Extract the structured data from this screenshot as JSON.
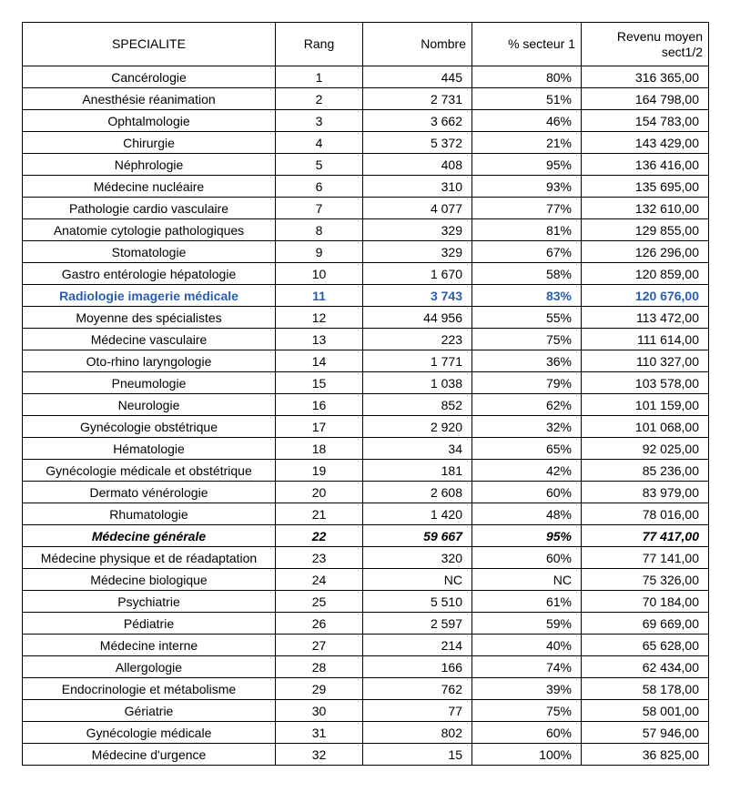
{
  "table": {
    "columns": [
      {
        "key": "specialite",
        "label": "SPECIALITE",
        "class": "col-specialite"
      },
      {
        "key": "rang",
        "label": "Rang",
        "class": "col-rang"
      },
      {
        "key": "nombre",
        "label": "Nombre",
        "class": "col-nombre"
      },
      {
        "key": "secteur",
        "label": "% secteur 1",
        "class": "col-secteur"
      },
      {
        "key": "revenu",
        "label": "Revenu moyen sect1/2",
        "class": "col-revenu"
      }
    ],
    "rows": [
      {
        "specialite": "Cancérologie",
        "rang": "1",
        "nombre": "445",
        "secteur": "80%",
        "revenu": "316 365,00"
      },
      {
        "specialite": "Anesthésie réanimation",
        "rang": "2",
        "nombre": "2 731",
        "secteur": "51%",
        "revenu": "164 798,00"
      },
      {
        "specialite": "Ophtalmologie",
        "rang": "3",
        "nombre": "3 662",
        "secteur": "46%",
        "revenu": "154 783,00"
      },
      {
        "specialite": "Chirurgie",
        "rang": "4",
        "nombre": "5 372",
        "secteur": "21%",
        "revenu": "143 429,00"
      },
      {
        "specialite": "Néphrologie",
        "rang": "5",
        "nombre": "408",
        "secteur": "95%",
        "revenu": "136 416,00"
      },
      {
        "specialite": "Médecine nucléaire",
        "rang": "6",
        "nombre": "310",
        "secteur": "93%",
        "revenu": "135 695,00"
      },
      {
        "specialite": "Pathologie cardio vasculaire",
        "rang": "7",
        "nombre": "4 077",
        "secteur": "77%",
        "revenu": "132 610,00"
      },
      {
        "specialite": "Anatomie cytologie pathologiques",
        "rang": "8",
        "nombre": "329",
        "secteur": "81%",
        "revenu": "129 855,00"
      },
      {
        "specialite": "Stomatologie",
        "rang": "9",
        "nombre": "329",
        "secteur": "67%",
        "revenu": "126 296,00"
      },
      {
        "specialite": "Gastro entérologie hépatologie",
        "rang": "10",
        "nombre": "1 670",
        "secteur": "58%",
        "revenu": "120 859,00"
      },
      {
        "specialite": "Radiologie imagerie médicale",
        "rang": "11",
        "nombre": "3 743",
        "secteur": "83%",
        "revenu": "120 676,00",
        "style": "blue"
      },
      {
        "specialite": "Moyenne des spécialistes",
        "rang": "12",
        "nombre": "44 956",
        "secteur": "55%",
        "revenu": "113 472,00"
      },
      {
        "specialite": "Médecine vasculaire",
        "rang": "13",
        "nombre": "223",
        "secteur": "75%",
        "revenu": "111 614,00"
      },
      {
        "specialite": "Oto-rhino laryngologie",
        "rang": "14",
        "nombre": "1 771",
        "secteur": "36%",
        "revenu": "110 327,00"
      },
      {
        "specialite": "Pneumologie",
        "rang": "15",
        "nombre": "1 038",
        "secteur": "79%",
        "revenu": "103 578,00"
      },
      {
        "specialite": "Neurologie",
        "rang": "16",
        "nombre": "852",
        "secteur": "62%",
        "revenu": "101 159,00"
      },
      {
        "specialite": "Gynécologie obstétrique",
        "rang": "17",
        "nombre": "2 920",
        "secteur": "32%",
        "revenu": "101 068,00"
      },
      {
        "specialite": "Hématologie",
        "rang": "18",
        "nombre": "34",
        "secteur": "65%",
        "revenu": "92 025,00"
      },
      {
        "specialite": "Gynécologie médicale et obstétrique",
        "rang": "19",
        "nombre": "181",
        "secteur": "42%",
        "revenu": "85 236,00"
      },
      {
        "specialite": "Dermato vénérologie",
        "rang": "20",
        "nombre": "2 608",
        "secteur": "60%",
        "revenu": "83 979,00"
      },
      {
        "specialite": "Rhumatologie",
        "rang": "21",
        "nombre": "1 420",
        "secteur": "48%",
        "revenu": "78 016,00"
      },
      {
        "specialite": "Médecine générale",
        "rang": "22",
        "nombre": "59 667",
        "secteur": "95%",
        "revenu": "77 417,00",
        "style": "bold"
      },
      {
        "specialite": "Médecine physique et de réadaptation",
        "rang": "23",
        "nombre": "320",
        "secteur": "60%",
        "revenu": "77 141,00"
      },
      {
        "specialite": "Médecine biologique",
        "rang": "24",
        "nombre": "NC",
        "secteur": "NC",
        "revenu": "75 326,00"
      },
      {
        "specialite": "Psychiatrie",
        "rang": "25",
        "nombre": "5 510",
        "secteur": "61%",
        "revenu": "70 184,00"
      },
      {
        "specialite": "Pédiatrie",
        "rang": "26",
        "nombre": "2 597",
        "secteur": "59%",
        "revenu": "69 669,00"
      },
      {
        "specialite": "Médecine interne",
        "rang": "27",
        "nombre": "214",
        "secteur": "40%",
        "revenu": "65 628,00"
      },
      {
        "specialite": "Allergologie",
        "rang": "28",
        "nombre": "166",
        "secteur": "74%",
        "revenu": "62 434,00"
      },
      {
        "specialite": "Endocrinologie et métabolisme",
        "rang": "29",
        "nombre": "762",
        "secteur": "39%",
        "revenu": "58 178,00"
      },
      {
        "specialite": "Gériatrie",
        "rang": "30",
        "nombre": "77",
        "secteur": "75%",
        "revenu": "58 001,00"
      },
      {
        "specialite": "Gynécologie médicale",
        "rang": "31",
        "nombre": "802",
        "secteur": "60%",
        "revenu": "57 946,00"
      },
      {
        "specialite": "Médecine d'urgence",
        "rang": "32",
        "nombre": "15",
        "secteur": "100%",
        "revenu": "36 825,00"
      }
    ],
    "styling": {
      "font_family": "Arial",
      "font_size_pt": 10,
      "border_color": "#000000",
      "highlight_blue_color": "#2a5db0",
      "background_color": "#ffffff"
    }
  }
}
